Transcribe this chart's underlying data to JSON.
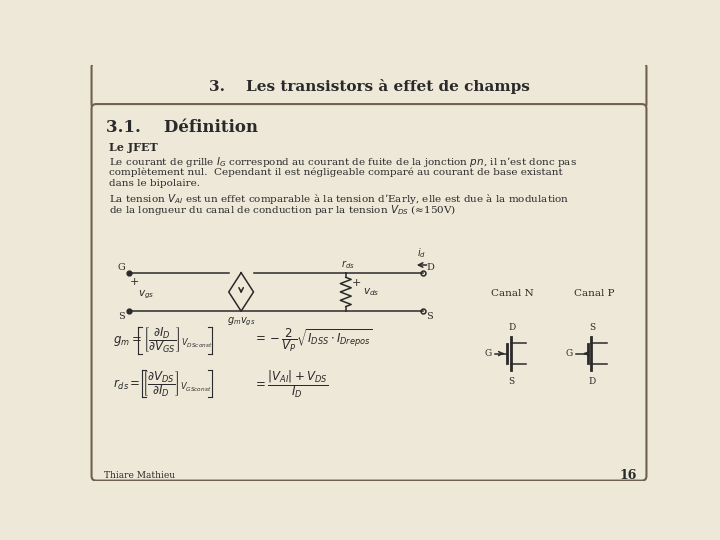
{
  "bg_color": "#ede8d8",
  "title_text": "3.    Les transistors à effet de champs",
  "section_title": "3.1.    Définition",
  "subsection": "Le JFET",
  "p1_line1": "Le courant de grille $I_G$ correspond au courant de fuite de la jonction $pn$, il n’est donc pas",
  "p1_line2": "complètement nul.  Cependant il est négligeable comparé au courant de base existant",
  "p1_line3": "dans le bipolaire.",
  "p2_line1": "La tension $V_{AI}$ est un effet comparable à la tension d’Early, elle est due à la modulation",
  "p2_line2": "de la longueur du canal de conduction par la tension $V_{DS}$ (≈150V)",
  "canal_n": "Canal N",
  "canal_p": "Canal P",
  "footer": "Thiare Mathieu",
  "page_num": "16",
  "border_color": "#706050",
  "text_color": "#2a2a2a",
  "title_fontsize": 11,
  "section_fontsize": 12,
  "body_fontsize": 7.5,
  "sub_fontsize": 8
}
